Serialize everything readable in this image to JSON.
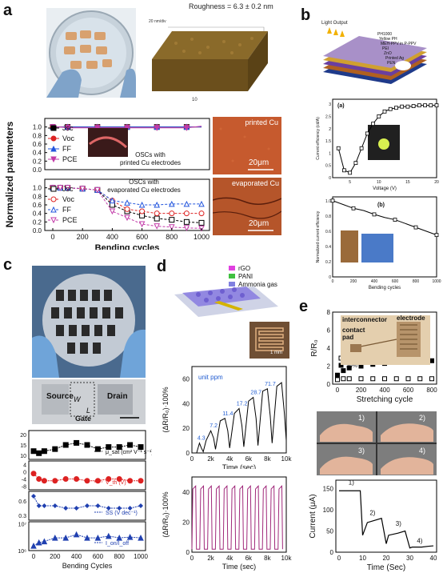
{
  "panels": {
    "a": "a",
    "b": "b",
    "c": "c",
    "d": "d",
    "e": "e"
  },
  "a": {
    "roughness": "Roughness = 6.3 ± 0.2 nm",
    "afm_z": "20 nm/div",
    "afm_x": "10",
    "ylabel": "Normalized parameters",
    "xlabel": "Bending cycles",
    "xticks": [
      "0",
      "200",
      "400",
      "600",
      "800",
      "1000"
    ],
    "yticks": [
      "0.0",
      "0.2",
      "0.4",
      "0.6",
      "0.8",
      "1.0"
    ],
    "legend_top": [
      "Jsc",
      "Voc",
      "FF",
      "PCE"
    ],
    "legend_bottom": [
      "Jsc",
      "Voc",
      "FF",
      "PCE"
    ],
    "note_top": "OSCs with\nprinted Cu electrodes",
    "note_bottom": "OSCs with\nevaporated Cu electrodes",
    "img_top_label": "printed Cu",
    "img_top_scale": "20μm",
    "img_bottom_label": "evaporated Cu",
    "img_bottom_scale": "20μm"
  },
  "b": {
    "light_output": "Light Output",
    "layers": [
      "PH1000",
      "Yellow PH",
      "MEH-PPV in P-PPV",
      "PEI",
      "ZnO",
      "Printed Ag",
      "PEN"
    ],
    "chart1_tag": "(a)",
    "chart1_ylabel": "Current efficiency (cd/A)",
    "chart1_xlabel": "Voltage (V)",
    "chart1_xticks": [
      "5",
      "10",
      "15",
      "20"
    ],
    "chart1_yticks": [
      "0",
      "0.5",
      "1",
      "1.5",
      "2",
      "2.5",
      "3"
    ],
    "chart2_tag": "(b)",
    "chart2_ylabel": "Normalized current efficiency",
    "chart2_xlabel": "Bending cycles",
    "chart2_xticks": [
      "0",
      "200",
      "400",
      "600",
      "800",
      "1000"
    ],
    "chart2_yticks": [
      "0",
      "0.2",
      "0.4",
      "0.6",
      "0.8",
      "1.0"
    ]
  },
  "c": {
    "source": "Source",
    "drain": "Drain",
    "gate": "Gate",
    "w": "W",
    "l": "L",
    "row1_label": "μ_sat (cm² V⁻¹ s⁻¹)",
    "row2_label": "V_th (V)",
    "row3_label": "SS (V dec⁻¹)",
    "row4_label": "I_on/I_off",
    "row1_ticks": [
      "10",
      "15",
      "20"
    ],
    "row2_ticks": [
      "-8",
      "-4",
      "0",
      "4"
    ],
    "row3_ticks": [
      "0.3",
      "0.6"
    ],
    "row4_ticks": [
      "10⁶",
      "10⁷"
    ],
    "xlabel": "Bending Cycles",
    "xticks": [
      "0",
      "200",
      "400",
      "600",
      "800",
      "1000"
    ]
  },
  "d": {
    "legend": [
      "rGO",
      "PANI",
      "Ammonia gas"
    ],
    "scale": "1 mm",
    "ylabel": "(ΔR/R₀)·100%",
    "xlabel": "Time (sec)",
    "xticks": [
      "0",
      "2k",
      "4k",
      "6k",
      "8k",
      "10k"
    ],
    "top_yticks": [
      "0",
      "20",
      "40",
      "60"
    ],
    "bottom_yticks": [
      "0",
      "20",
      "40"
    ],
    "unit": "unit ppm",
    "conc": [
      "4.3",
      "7.2",
      "11.4",
      "17.2",
      "28.7",
      "71.7"
    ]
  },
  "e": {
    "interconnector": "interconnector",
    "electrode": "electrode",
    "contact": "contact\npad",
    "ylabel": "R/R₀",
    "xlabel": "Stretching cycle",
    "xticks": [
      "0",
      "200",
      "400",
      "600",
      "800"
    ],
    "yticks": [
      "0",
      "2",
      "4",
      "6",
      "8"
    ],
    "legend": [
      "0%",
      "20%"
    ],
    "photo_labels": [
      "1)",
      "2)",
      "3)",
      "4)"
    ],
    "cur_ylabel": "Current (μA)",
    "cur_xlabel": "Time (Sec)",
    "cur_xticks": [
      "0",
      "10",
      "20",
      "30",
      "40"
    ],
    "cur_yticks": [
      "0",
      "50",
      "100",
      "150"
    ],
    "cur_steps": [
      "1)",
      "2)",
      "3)",
      "4)"
    ]
  },
  "chart_data": [
    {
      "type": "line",
      "title": "",
      "xlabel": "Bending cycles",
      "ylabel": "Normalized parameters",
      "x": [
        0,
        50,
        100,
        200,
        300,
        400,
        500,
        600,
        700,
        800,
        900,
        1000
      ],
      "series": [
        {
          "name": "Jsc",
          "values": [
            1.0,
            1.0,
            1.0,
            1.0,
            1.0,
            1.0,
            1.0,
            1.0,
            1.0,
            1.0,
            1.0,
            1.0
          ]
        },
        {
          "name": "Voc",
          "values": [
            1.0,
            1.0,
            1.0,
            1.0,
            1.0,
            1.0,
            1.0,
            1.0,
            1.0,
            1.0,
            1.0,
            1.0
          ]
        },
        {
          "name": "FF",
          "values": [
            1.0,
            1.0,
            1.0,
            1.0,
            1.0,
            1.0,
            1.0,
            1.0,
            1.0,
            1.0,
            1.0,
            1.0
          ]
        },
        {
          "name": "PCE",
          "values": [
            1.0,
            1.0,
            0.98,
            0.98,
            0.98,
            0.98,
            0.98,
            0.98,
            0.98,
            0.98,
            0.98,
            1.02
          ]
        }
      ],
      "ylim": [
        0,
        1.2
      ]
    },
    {
      "type": "line",
      "title": "",
      "xlabel": "Bending cycles",
      "ylabel": "Normalized parameters",
      "x": [
        0,
        50,
        100,
        200,
        300,
        400,
        500,
        600,
        700,
        800,
        900,
        1000
      ],
      "series": [
        {
          "name": "Jsc",
          "values": [
            1.0,
            1.0,
            1.0,
            0.98,
            0.95,
            0.6,
            0.45,
            0.35,
            0.28,
            0.25,
            0.2,
            0.18
          ]
        },
        {
          "name": "Voc",
          "values": [
            1.0,
            1.0,
            1.0,
            0.98,
            0.95,
            0.7,
            0.5,
            0.45,
            0.4,
            0.4,
            0.4,
            0.4
          ]
        },
        {
          "name": "FF",
          "values": [
            1.0,
            1.0,
            1.0,
            0.98,
            0.95,
            0.7,
            0.65,
            0.6,
            0.6,
            0.62,
            0.62,
            0.62
          ]
        },
        {
          "name": "PCE",
          "values": [
            1.0,
            1.0,
            1.0,
            0.98,
            0.95,
            0.45,
            0.3,
            0.15,
            0.1,
            0.08,
            0.06,
            0.05
          ]
        }
      ],
      "ylim": [
        0,
        1.2
      ]
    },
    {
      "type": "line",
      "xlabel": "Voltage (V)",
      "ylabel": "Current efficiency (cd/A)",
      "x": [
        3,
        4,
        5,
        6,
        7,
        8,
        9,
        10,
        11,
        12,
        13,
        14,
        15,
        16,
        17,
        18,
        19,
        20
      ],
      "values": [
        1.2,
        0.3,
        0.2,
        0.6,
        1.2,
        1.8,
        2.2,
        2.5,
        2.7,
        2.8,
        2.85,
        2.9,
        2.9,
        2.92,
        2.95,
        2.95,
        2.95,
        2.95
      ],
      "ylim": [
        0,
        3.2
      ]
    },
    {
      "type": "line",
      "xlabel": "Bending cycles",
      "ylabel": "Normalized current efficiency",
      "x": [
        0,
        100,
        200,
        300,
        400,
        500,
        600,
        700,
        800,
        900,
        1000
      ],
      "values": [
        1.0,
        0.95,
        0.9,
        0.87,
        0.82,
        0.78,
        0.75,
        0.7,
        0.65,
        0.6,
        0.55
      ],
      "ylim": [
        0,
        1.05
      ]
    },
    {
      "type": "line",
      "xlabel": "Bending Cycles",
      "x": [
        0,
        50,
        100,
        200,
        300,
        400,
        500,
        600,
        700,
        800,
        900,
        1000
      ],
      "series": [
        {
          "name": "μ_sat",
          "values": [
            12,
            11,
            12,
            13,
            15,
            16,
            15,
            13,
            14,
            14,
            15,
            14
          ]
        },
        {
          "name": "V_th",
          "values": [
            -1,
            -4,
            -5,
            -5,
            -4,
            -4,
            -5,
            -5,
            -4,
            -4,
            -5,
            -5
          ]
        },
        {
          "name": "SS",
          "values": [
            0.7,
            0.5,
            0.5,
            0.5,
            0.45,
            0.45,
            0.5,
            0.5,
            0.45,
            0.45,
            0.45,
            0.5
          ]
        },
        {
          "name": "I_on/I_off",
          "values": [
            1500000.0,
            2000000.0,
            2200000.0,
            3000000.0,
            3000000.0,
            4000000.0,
            3000000.0,
            3000000.0,
            3500000.0,
            3000000.0,
            3200000.0,
            3000000.0
          ]
        }
      ]
    },
    {
      "type": "line",
      "xlabel": "Time (sec)",
      "ylabel": "(ΔR/R₀)·100%",
      "x": [
        0,
        500,
        800,
        1000,
        1200,
        1500,
        2000,
        2300,
        2500,
        3000,
        3500,
        3800,
        4000,
        4500,
        5000,
        5300,
        5500,
        6000,
        6500,
        6800,
        7000,
        7500,
        8000,
        8300,
        8500,
        9000,
        9500,
        9800,
        10000
      ],
      "values": [
        0,
        0,
        8,
        4,
        1,
        10,
        18,
        12,
        3,
        26,
        28,
        18,
        4,
        32,
        36,
        22,
        5,
        42,
        45,
        28,
        6,
        50,
        52,
        30,
        8,
        54,
        57,
        32,
        10
      ],
      "annotations": [
        "4.3",
        "7.2",
        "11.4",
        "17.2",
        "28.7",
        "71.7"
      ],
      "ylim": [
        0,
        70
      ]
    },
    {
      "type": "line",
      "xlabel": "Stretching cycle",
      "ylabel": "R/R₀",
      "series": [
        {
          "name": "0%",
          "x": [
            0,
            50,
            100,
            200,
            300,
            400,
            500,
            600,
            700,
            800
          ],
          "values": [
            0.5,
            0.6,
            0.6,
            0.6,
            0.6,
            0.6,
            0.6,
            0.6,
            0.6,
            0.6
          ]
        },
        {
          "name": "20%",
          "x": [
            0,
            50,
            100,
            200,
            300,
            400,
            500,
            600,
            700,
            800
          ],
          "values": [
            1.0,
            1.5,
            1.8,
            2.0,
            2.2,
            2.3,
            2.4,
            2.5,
            2.5,
            2.6
          ]
        }
      ],
      "ylim": [
        0,
        8
      ]
    },
    {
      "type": "line",
      "xlabel": "Time (Sec)",
      "ylabel": "Current (μA)",
      "x": [
        0,
        5,
        9,
        10,
        12,
        15,
        18,
        20,
        21,
        25,
        28,
        30,
        31,
        35,
        38,
        40
      ],
      "values": [
        145,
        145,
        145,
        40,
        70,
        75,
        80,
        20,
        40,
        45,
        50,
        10,
        12,
        12,
        14,
        15
      ],
      "annotations": [
        "1)",
        "2)",
        "3)",
        "4)"
      ],
      "ylim": [
        0,
        170
      ]
    }
  ]
}
